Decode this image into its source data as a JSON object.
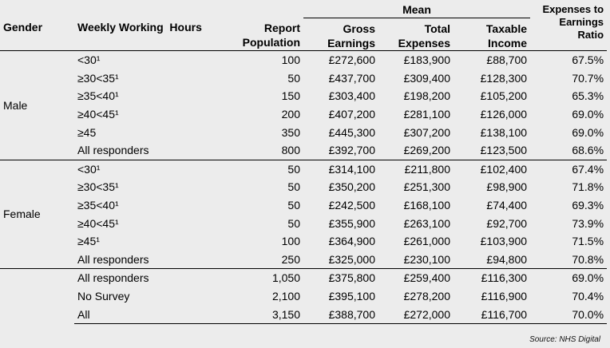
{
  "header": {
    "gender": "Gender",
    "hours": "Weekly Working  Hours",
    "population": "Report Population",
    "mean": "Mean",
    "gross": "Gross Earnings",
    "expenses": "Total Expenses",
    "income": "Taxable Income",
    "ratio": "Expenses to Earnings Ratio"
  },
  "groups": [
    {
      "gender": "Male",
      "rows": [
        {
          "hours": "<30¹",
          "pop": "100",
          "gross": "£272,600",
          "exp": "£183,900",
          "inc": "£88,700",
          "ratio": "67.5%"
        },
        {
          "hours": "≥30<35¹",
          "pop": "50",
          "gross": "£437,700",
          "exp": "£309,400",
          "inc": "£128,300",
          "ratio": "70.7%"
        },
        {
          "hours": "≥35<40¹",
          "pop": "150",
          "gross": "£303,400",
          "exp": "£198,200",
          "inc": "£105,200",
          "ratio": "65.3%"
        },
        {
          "hours": "≥40<45¹",
          "pop": "200",
          "gross": "£407,200",
          "exp": "£281,100",
          "inc": "£126,000",
          "ratio": "69.0%"
        },
        {
          "hours": "≥45",
          "pop": "350",
          "gross": "£445,300",
          "exp": "£307,200",
          "inc": "£138,100",
          "ratio": "69.0%"
        },
        {
          "hours": "All responders",
          "pop": "800",
          "gross": "£392,700",
          "exp": "£269,200",
          "inc": "£123,500",
          "ratio": "68.6%"
        }
      ]
    },
    {
      "gender": "Female",
      "rows": [
        {
          "hours": "<30¹",
          "pop": "50",
          "gross": "£314,100",
          "exp": "£211,800",
          "inc": "£102,400",
          "ratio": "67.4%"
        },
        {
          "hours": "≥30<35¹",
          "pop": "50",
          "gross": "£350,200",
          "exp": "£251,300",
          "inc": "£98,900",
          "ratio": "71.8%"
        },
        {
          "hours": "≥35<40¹",
          "pop": "50",
          "gross": "£242,500",
          "exp": "£168,100",
          "inc": "£74,400",
          "ratio": "69.3%"
        },
        {
          "hours": "≥40<45¹",
          "pop": "50",
          "gross": "£355,900",
          "exp": "£263,100",
          "inc": "£92,700",
          "ratio": "73.9%"
        },
        {
          "hours": "≥45¹",
          "pop": "100",
          "gross": "£364,900",
          "exp": "£261,000",
          "inc": "£103,900",
          "ratio": "71.5%"
        },
        {
          "hours": "All responders",
          "pop": "250",
          "gross": "£325,000",
          "exp": "£230,100",
          "inc": "£94,800",
          "ratio": "70.8%"
        }
      ]
    },
    {
      "gender": "",
      "rows": [
        {
          "hours": "All responders",
          "pop": "1,050",
          "gross": "£375,800",
          "exp": "£259,400",
          "inc": "£116,300",
          "ratio": "69.0%"
        },
        {
          "hours": "No Survey",
          "pop": "2,100",
          "gross": "£395,100",
          "exp": "£278,200",
          "inc": "£116,900",
          "ratio": "70.4%"
        },
        {
          "hours": "All",
          "pop": "3,150",
          "gross": "£388,700",
          "exp": "£272,000",
          "inc": "£116,700",
          "ratio": "70.0%"
        }
      ]
    }
  ],
  "source": "Source: NHS Digital"
}
